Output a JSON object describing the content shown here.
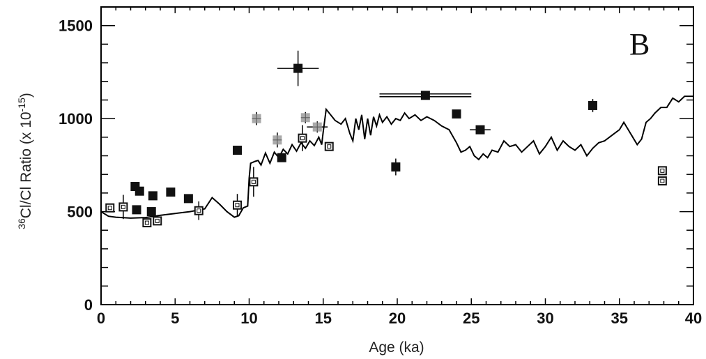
{
  "chart_data": {
    "type": "scatter",
    "panel_label": "B",
    "xlabel": "Age (ka)",
    "ylabel": {
      "prefix_sup": "36",
      "main": "Cl/Cl Ratio (x 10",
      "exp": "-15",
      "suffix": ")"
    },
    "xlim": [
      0,
      40
    ],
    "ylim": [
      0,
      1600
    ],
    "x_ticks": [
      "0",
      "5",
      "10",
      "15",
      "20",
      "25",
      "30",
      "35",
      "40"
    ],
    "y_ticks": [
      "0",
      "500",
      "1000",
      "1500"
    ],
    "grid": false,
    "colors": {
      "filled": "#111111",
      "open": "#111111",
      "gray": "#aaaaaa",
      "line": "#000000"
    },
    "series": [
      {
        "marker": "filled-square",
        "points": [
          {
            "x": 2.3,
            "y": 635
          },
          {
            "x": 2.6,
            "y": 610
          },
          {
            "x": 2.4,
            "y": 510
          },
          {
            "x": 3.5,
            "y": 585
          },
          {
            "x": 3.4,
            "y": 500
          },
          {
            "x": 4.7,
            "y": 605
          },
          {
            "x": 5.9,
            "y": 570
          },
          {
            "x": 9.2,
            "y": 830
          },
          {
            "x": 12.2,
            "y": 790
          },
          {
            "x": 13.3,
            "y": 1270,
            "xerr": 1.4,
            "yerr": 95
          },
          {
            "x": 21.9,
            "y": 1125,
            "xerr": 3.1,
            "yerr": 20
          },
          {
            "x": 24.0,
            "y": 1025,
            "yerr": 20
          },
          {
            "x": 25.6,
            "y": 940,
            "xerr": 0.7,
            "yerr": 20
          },
          {
            "x": 33.2,
            "y": 1070,
            "yerr": 35
          },
          {
            "x": 19.9,
            "y": 740,
            "yerr": 45
          }
        ]
      },
      {
        "marker": "open-square",
        "points": [
          {
            "x": 0.6,
            "y": 520
          },
          {
            "x": 1.5,
            "y": 525,
            "yerr": 65
          },
          {
            "x": 3.1,
            "y": 440
          },
          {
            "x": 3.8,
            "y": 450
          },
          {
            "x": 6.6,
            "y": 505,
            "yerr": 50
          },
          {
            "x": 9.2,
            "y": 535,
            "yerr": 60
          },
          {
            "x": 10.3,
            "y": 660,
            "yerr": 80
          },
          {
            "x": 13.6,
            "y": 895,
            "yerr": 70
          },
          {
            "x": 15.4,
            "y": 850
          },
          {
            "x": 37.9,
            "y": 720
          },
          {
            "x": 37.9,
            "y": 665
          }
        ]
      },
      {
        "marker": "gray-square",
        "points": [
          {
            "x": 10.5,
            "y": 1000,
            "yerr": 35
          },
          {
            "x": 11.9,
            "y": 885,
            "yerr": 40
          },
          {
            "x": 13.8,
            "y": 1005,
            "yerr": 30
          },
          {
            "x": 14.6,
            "y": 955,
            "xerr": 0.7,
            "yerr": 30
          }
        ]
      },
      {
        "type": "line",
        "points": [
          [
            0,
            500
          ],
          [
            0.5,
            475
          ],
          [
            1,
            470
          ],
          [
            2,
            465
          ],
          [
            3,
            468
          ],
          [
            4,
            480
          ],
          [
            5,
            490
          ],
          [
            6,
            500
          ],
          [
            7,
            515
          ],
          [
            7.5,
            575
          ],
          [
            8,
            540
          ],
          [
            8.5,
            500
          ],
          [
            9,
            470
          ],
          [
            9.3,
            478
          ],
          [
            9.6,
            520
          ],
          [
            9.9,
            530
          ],
          [
            10,
            680
          ],
          [
            10.1,
            760
          ],
          [
            10.4,
            770
          ],
          [
            10.6,
            775
          ],
          [
            10.8,
            750
          ],
          [
            11.1,
            815
          ],
          [
            11.4,
            760
          ],
          [
            11.7,
            820
          ],
          [
            12.0,
            790
          ],
          [
            12.3,
            835
          ],
          [
            12.6,
            810
          ],
          [
            12.9,
            860
          ],
          [
            13.2,
            825
          ],
          [
            13.5,
            870
          ],
          [
            13.8,
            840
          ],
          [
            14.1,
            880
          ],
          [
            14.4,
            855
          ],
          [
            14.7,
            900
          ],
          [
            14.9,
            860
          ],
          [
            15.0,
            930
          ],
          [
            15.2,
            1050
          ],
          [
            15.5,
            1020
          ],
          [
            15.8,
            990
          ],
          [
            16.2,
            970
          ],
          [
            16.5,
            1000
          ],
          [
            16.8,
            920
          ],
          [
            17.0,
            880
          ],
          [
            17.2,
            1000
          ],
          [
            17.4,
            940
          ],
          [
            17.6,
            1020
          ],
          [
            17.8,
            890
          ],
          [
            18.0,
            1000
          ],
          [
            18.2,
            910
          ],
          [
            18.4,
            1010
          ],
          [
            18.6,
            960
          ],
          [
            18.8,
            1020
          ],
          [
            19.0,
            980
          ],
          [
            19.3,
            1010
          ],
          [
            19.6,
            970
          ],
          [
            19.9,
            1000
          ],
          [
            20.2,
            990
          ],
          [
            20.5,
            1030
          ],
          [
            20.8,
            1000
          ],
          [
            21.2,
            1020
          ],
          [
            21.6,
            990
          ],
          [
            22.0,
            1010
          ],
          [
            22.5,
            990
          ],
          [
            23.0,
            960
          ],
          [
            23.5,
            940
          ],
          [
            24.0,
            870
          ],
          [
            24.3,
            820
          ],
          [
            24.6,
            830
          ],
          [
            24.9,
            850
          ],
          [
            25.2,
            800
          ],
          [
            25.5,
            780
          ],
          [
            25.8,
            810
          ],
          [
            26.1,
            790
          ],
          [
            26.4,
            830
          ],
          [
            26.8,
            820
          ],
          [
            27.2,
            880
          ],
          [
            27.6,
            850
          ],
          [
            28.0,
            860
          ],
          [
            28.4,
            820
          ],
          [
            28.8,
            850
          ],
          [
            29.2,
            880
          ],
          [
            29.6,
            810
          ],
          [
            30.0,
            850
          ],
          [
            30.4,
            900
          ],
          [
            30.8,
            830
          ],
          [
            31.2,
            880
          ],
          [
            31.6,
            850
          ],
          [
            32.0,
            830
          ],
          [
            32.4,
            860
          ],
          [
            32.8,
            800
          ],
          [
            33.2,
            840
          ],
          [
            33.6,
            870
          ],
          [
            34.0,
            880
          ],
          [
            34.5,
            910
          ],
          [
            35.0,
            940
          ],
          [
            35.3,
            980
          ],
          [
            35.6,
            940
          ],
          [
            35.9,
            900
          ],
          [
            36.2,
            860
          ],
          [
            36.5,
            890
          ],
          [
            36.8,
            980
          ],
          [
            37.1,
            1000
          ],
          [
            37.4,
            1030
          ],
          [
            37.8,
            1060
          ],
          [
            38.2,
            1060
          ],
          [
            38.6,
            1110
          ],
          [
            39.0,
            1090
          ],
          [
            39.4,
            1120
          ],
          [
            40.0,
            1120
          ]
        ]
      }
    ]
  }
}
